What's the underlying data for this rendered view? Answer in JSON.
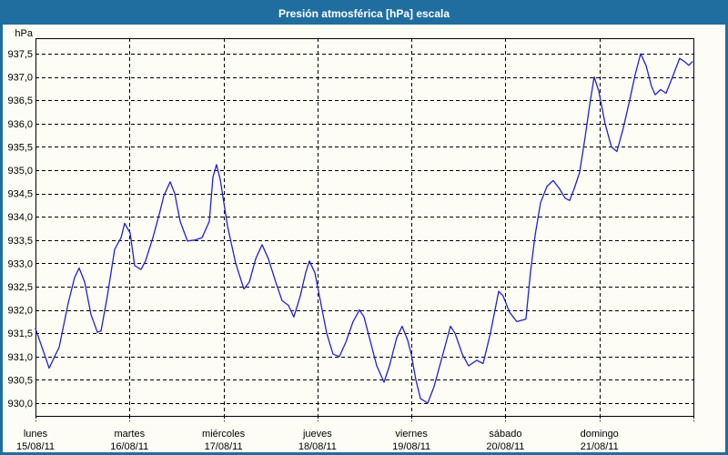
{
  "window": {
    "title": "Presión atmosférica [hPa] escala",
    "colors": {
      "title_bar": "#1f6e9f",
      "frame": "#1f6e9f",
      "background": "#fdfdf6",
      "title_text": "#ffffff",
      "grid": "#000000",
      "axis_text": "#000000"
    }
  },
  "chart_data": {
    "type": "line",
    "title": "Presión atmosférica [hPa] escala",
    "grid": "dashed",
    "legend_position": "none",
    "y_axis": {
      "unit_label": "hPa",
      "min": 930.0,
      "max": 937.5,
      "tick_step": 0.5,
      "ticks": [
        {
          "value": 937.5,
          "label": "937,5"
        },
        {
          "value": 937.0,
          "label": "937,0"
        },
        {
          "value": 936.5,
          "label": "936,5"
        },
        {
          "value": 936.0,
          "label": "936,0"
        },
        {
          "value": 935.5,
          "label": "935,5"
        },
        {
          "value": 935.0,
          "label": "935,0"
        },
        {
          "value": 934.5,
          "label": "934,5"
        },
        {
          "value": 934.0,
          "label": "934,0"
        },
        {
          "value": 933.5,
          "label": "933,5"
        },
        {
          "value": 933.0,
          "label": "933,0"
        },
        {
          "value": 932.5,
          "label": "932,5"
        },
        {
          "value": 932.0,
          "label": "932,0"
        },
        {
          "value": 931.5,
          "label": "931,5"
        },
        {
          "value": 931.0,
          "label": "931,0"
        },
        {
          "value": 930.5,
          "label": "930,5"
        },
        {
          "value": 930.0,
          "label": "930,0"
        }
      ]
    },
    "x_axis": {
      "unit": "days",
      "days": [
        {
          "name": "lunes",
          "date": "15/08/11"
        },
        {
          "name": "martes",
          "date": "16/08/11"
        },
        {
          "name": "miércoles",
          "date": "17/08/11"
        },
        {
          "name": "jueves",
          "date": "18/08/11"
        },
        {
          "name": "viernes",
          "date": "19/08/11"
        },
        {
          "name": "sábado",
          "date": "20/08/11"
        },
        {
          "name": "domingo",
          "date": "21/08/11"
        }
      ]
    },
    "series": [
      {
        "name": "Presión atmosférica",
        "color": "#2222cc",
        "x_unit": "days_since_monday_00h",
        "points": [
          [
            0.0,
            931.6
          ],
          [
            0.077,
            931.15
          ],
          [
            0.145,
            930.75
          ],
          [
            0.203,
            931.0
          ],
          [
            0.252,
            931.2
          ],
          [
            0.349,
            932.15
          ],
          [
            0.416,
            932.7
          ],
          [
            0.465,
            932.9
          ],
          [
            0.523,
            932.6
          ],
          [
            0.591,
            931.9
          ],
          [
            0.658,
            931.52
          ],
          [
            0.697,
            931.55
          ],
          [
            0.765,
            932.3
          ],
          [
            0.842,
            933.3
          ],
          [
            0.91,
            933.55
          ],
          [
            0.949,
            933.86
          ],
          [
            1.007,
            933.65
          ],
          [
            1.055,
            932.95
          ],
          [
            1.123,
            932.87
          ],
          [
            1.171,
            933.05
          ],
          [
            1.249,
            933.55
          ],
          [
            1.317,
            934.05
          ],
          [
            1.365,
            934.45
          ],
          [
            1.433,
            934.75
          ],
          [
            1.481,
            934.5
          ],
          [
            1.539,
            933.9
          ],
          [
            1.617,
            933.48
          ],
          [
            1.694,
            933.5
          ],
          [
            1.772,
            933.55
          ],
          [
            1.849,
            933.9
          ],
          [
            1.888,
            934.85
          ],
          [
            1.926,
            935.12
          ],
          [
            1.965,
            934.8
          ],
          [
            2.043,
            933.8
          ],
          [
            2.13,
            933.0
          ],
          [
            2.217,
            932.45
          ],
          [
            2.275,
            932.6
          ],
          [
            2.343,
            933.1
          ],
          [
            2.411,
            933.4
          ],
          [
            2.478,
            933.1
          ],
          [
            2.556,
            932.6
          ],
          [
            2.624,
            932.2
          ],
          [
            2.691,
            932.1
          ],
          [
            2.749,
            931.85
          ],
          [
            2.817,
            932.3
          ],
          [
            2.875,
            932.8
          ],
          [
            2.914,
            933.05
          ],
          [
            2.972,
            932.8
          ],
          [
            3.03,
            932.2
          ],
          [
            3.098,
            931.5
          ],
          [
            3.166,
            931.05
          ],
          [
            3.233,
            931.0
          ],
          [
            3.301,
            931.3
          ],
          [
            3.379,
            931.75
          ],
          [
            3.447,
            932.0
          ],
          [
            3.495,
            931.85
          ],
          [
            3.553,
            931.4
          ],
          [
            3.631,
            930.8
          ],
          [
            3.708,
            930.45
          ],
          [
            3.766,
            930.8
          ],
          [
            3.843,
            931.4
          ],
          [
            3.901,
            931.65
          ],
          [
            3.96,
            931.35
          ],
          [
            3.998,
            931.05
          ],
          [
            4.047,
            930.5
          ],
          [
            4.095,
            930.1
          ],
          [
            4.173,
            930.0
          ],
          [
            4.24,
            930.35
          ],
          [
            4.328,
            931.0
          ],
          [
            4.415,
            931.65
          ],
          [
            4.463,
            931.5
          ],
          [
            4.541,
            931.05
          ],
          [
            4.608,
            930.8
          ],
          [
            4.695,
            930.92
          ],
          [
            4.763,
            930.85
          ],
          [
            4.84,
            931.5
          ],
          [
            4.928,
            932.4
          ],
          [
            4.976,
            932.3
          ],
          [
            5.044,
            931.95
          ],
          [
            5.121,
            931.75
          ],
          [
            5.218,
            931.8
          ],
          [
            5.266,
            932.8
          ],
          [
            5.315,
            933.6
          ],
          [
            5.373,
            934.3
          ],
          [
            5.441,
            934.65
          ],
          [
            5.508,
            934.78
          ],
          [
            5.576,
            934.6
          ],
          [
            5.634,
            934.4
          ],
          [
            5.683,
            934.35
          ],
          [
            5.731,
            934.6
          ],
          [
            5.789,
            934.95
          ],
          [
            5.847,
            935.7
          ],
          [
            5.896,
            936.4
          ],
          [
            5.944,
            937.0
          ],
          [
            5.993,
            936.7
          ],
          [
            6.06,
            936.0
          ],
          [
            6.128,
            935.5
          ],
          [
            6.186,
            935.4
          ],
          [
            6.254,
            935.9
          ],
          [
            6.321,
            936.5
          ],
          [
            6.38,
            937.05
          ],
          [
            6.438,
            937.5
          ],
          [
            6.496,
            937.25
          ],
          [
            6.554,
            936.8
          ],
          [
            6.593,
            936.62
          ],
          [
            6.651,
            936.73
          ],
          [
            6.709,
            936.65
          ],
          [
            6.777,
            937.0
          ],
          [
            6.854,
            937.4
          ],
          [
            6.912,
            937.32
          ],
          [
            6.951,
            937.25
          ],
          [
            6.99,
            937.33
          ]
        ]
      }
    ]
  }
}
